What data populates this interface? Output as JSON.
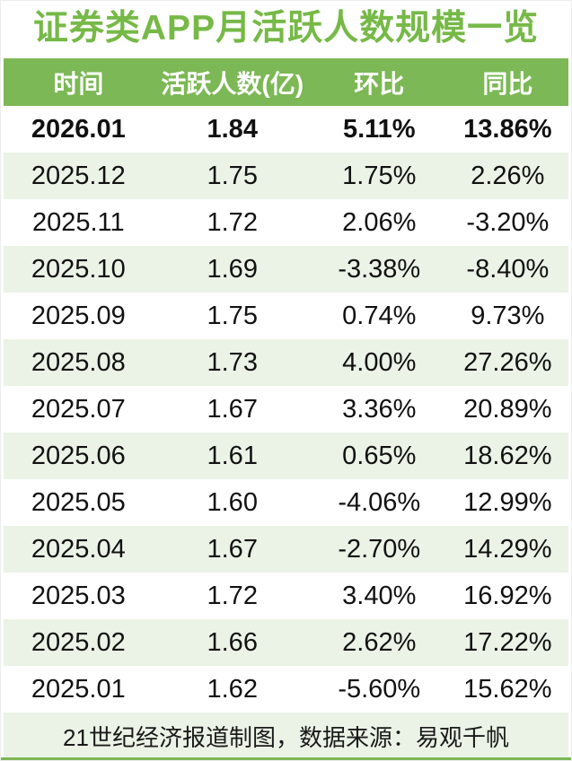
{
  "chart_data": {
    "type": "table",
    "title": "证券类APP月活跃人数规模一览",
    "columns": [
      "时间",
      "活跃人数(亿)",
      "环比",
      "同比"
    ],
    "rows": [
      [
        "2026.01",
        "1.84",
        "5.11%",
        "13.86%"
      ],
      [
        "2025.12",
        "1.75",
        "1.75%",
        "2.26%"
      ],
      [
        "2025.11",
        "1.72",
        "2.06%",
        "-3.20%"
      ],
      [
        "2025.10",
        "1.69",
        "-3.38%",
        "-8.40%"
      ],
      [
        "2025.09",
        "1.75",
        "0.74%",
        "9.73%"
      ],
      [
        "2025.08",
        "1.73",
        "4.00%",
        "27.26%"
      ],
      [
        "2025.07",
        "1.67",
        "3.36%",
        "20.89%"
      ],
      [
        "2025.06",
        "1.61",
        "0.65%",
        "18.62%"
      ],
      [
        "2025.05",
        "1.60",
        "-4.06%",
        "12.99%"
      ],
      [
        "2025.04",
        "1.67",
        "-2.70%",
        "14.29%"
      ],
      [
        "2025.03",
        "1.72",
        "3.40%",
        "16.92%"
      ],
      [
        "2025.02",
        "1.66",
        "2.62%",
        "17.22%"
      ],
      [
        "2025.01",
        "1.62",
        "-5.60%",
        "15.62%"
      ]
    ],
    "highlight_row_index": 0,
    "source": "21世纪经济报道制图，数据来源：易观千帆",
    "layout": {
      "grid": false,
      "zebra_striping": true,
      "header_position": "top"
    }
  },
  "colors": {
    "accent_green": "#7cb855",
    "title_green": "#76b947",
    "row_alt_green": "#ebf3e6",
    "header_text": "#ffffff",
    "body_text": "#111111"
  }
}
